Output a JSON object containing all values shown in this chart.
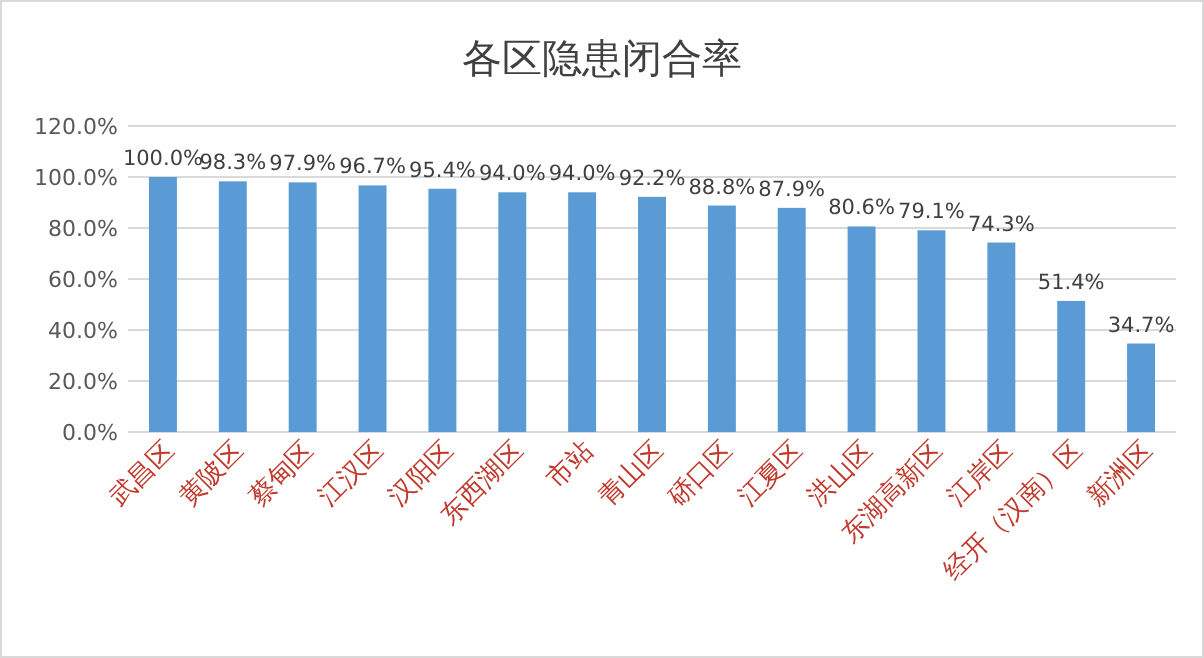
{
  "chart_data": {
    "type": "bar",
    "title": "各区隐患闭合率",
    "categories": [
      "武昌区",
      "黄陂区",
      "蔡甸区",
      "江汉区",
      "汉阳区",
      "东西湖区",
      "市站",
      "青山区",
      "硚口区",
      "江夏区",
      "洪山区",
      "东湖高新区",
      "江岸区",
      "经开（汉南）区",
      "新洲区"
    ],
    "values": [
      100.0,
      98.3,
      97.9,
      96.7,
      95.4,
      94.0,
      94.0,
      92.2,
      88.8,
      87.9,
      80.6,
      79.1,
      74.3,
      51.4,
      34.7
    ],
    "value_labels": [
      "100.0%",
      "98.3%",
      "97.9%",
      "96.7%",
      "95.4%",
      "94.0%",
      "94.0%",
      "92.2%",
      "88.8%",
      "87.9%",
      "80.6%",
      "79.1%",
      "74.3%",
      "51.4%",
      "34.7%"
    ],
    "color": "#5b9bd5",
    "ylim": [
      0,
      120
    ],
    "yticks": [
      {
        "value": 0,
        "label": "0.0%"
      },
      {
        "value": 20,
        "label": "20.0%"
      },
      {
        "value": 40,
        "label": "40.0%"
      },
      {
        "value": 60,
        "label": "60.0%"
      },
      {
        "value": 80,
        "label": "80.0%"
      },
      {
        "value": 100,
        "label": "100.0%"
      },
      {
        "value": 120,
        "label": "120.0%"
      }
    ],
    "grid": "y"
  }
}
